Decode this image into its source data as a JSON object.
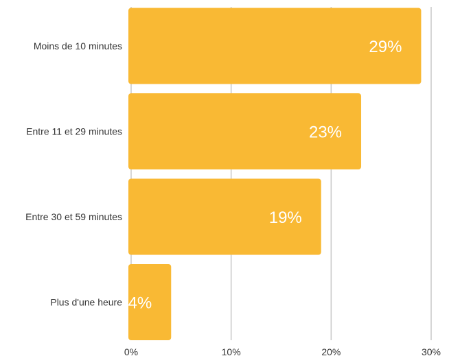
{
  "chart_data": {
    "type": "bar",
    "orientation": "horizontal",
    "categories": [
      "Moins de 10 minutes",
      "Entre 11 et 29 minutes",
      "Entre 30 et 59 minutes",
      "Plus d'une heure"
    ],
    "values": [
      29,
      23,
      19,
      4
    ],
    "data_labels": [
      "29%",
      "23%",
      "19%",
      "4%"
    ],
    "x_ticks": [
      "0%",
      "10%",
      "20%",
      "30%"
    ],
    "xlim": [
      0,
      30
    ],
    "title": "",
    "xlabel": "",
    "ylabel": "",
    "grid": "vertical",
    "bar_color": "#F9B934",
    "grid_color": "#c8c8c8"
  }
}
